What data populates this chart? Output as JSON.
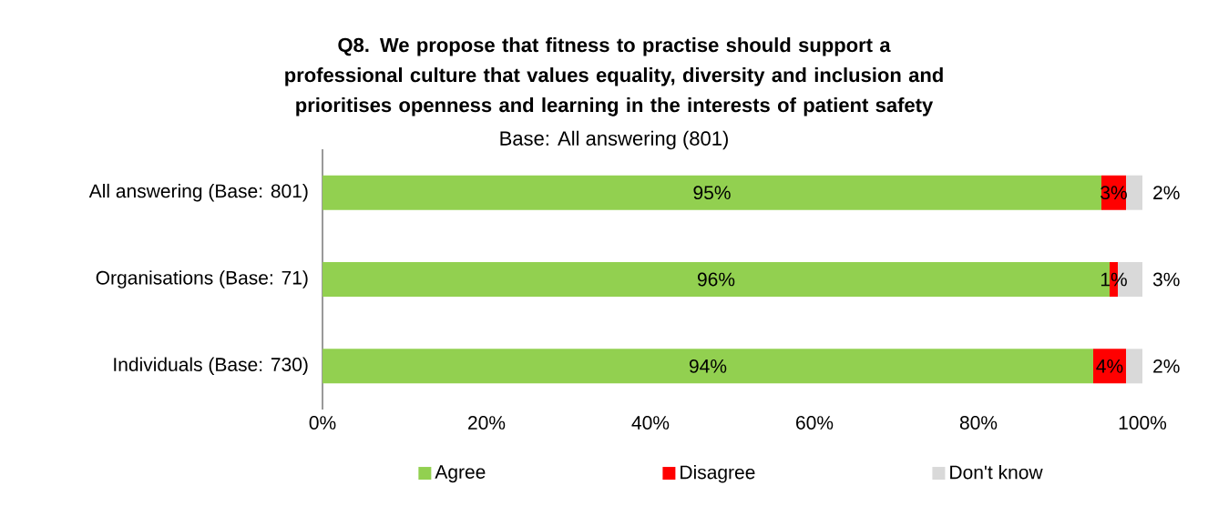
{
  "chart_data": {
    "type": "bar",
    "orientation": "horizontal",
    "stacked": true,
    "title": "Q8. We propose that fitness to practise should support a professional culture that values equality, diversity and inclusion and prioritises openness and learning in the interests of patient safety",
    "subtitle": "Base: All answering (801)",
    "categories": [
      "All answering (Base: 801)",
      "Organisations (Base: 71)",
      "Individuals (Base: 730)"
    ],
    "series": [
      {
        "name": "Agree",
        "color": "#92d050",
        "values": [
          95,
          96,
          94
        ],
        "value_labels": [
          "95%",
          "96%",
          "94%"
        ]
      },
      {
        "name": "Disagree",
        "color": "#ff0000",
        "values": [
          3,
          1,
          4
        ],
        "value_labels": [
          "3%",
          "1%",
          "4%"
        ]
      },
      {
        "name": "Don't know",
        "color": "#d9d9d9",
        "values": [
          2,
          3,
          2
        ],
        "value_labels": [
          "2%",
          "3%",
          "2%"
        ]
      }
    ],
    "xlim": [
      0,
      100
    ],
    "xticks": [
      {
        "value": 0,
        "label": "0%"
      },
      {
        "value": 20,
        "label": "20%"
      },
      {
        "value": 40,
        "label": "40%"
      },
      {
        "value": 60,
        "label": "60%"
      },
      {
        "value": 80,
        "label": "80%"
      },
      {
        "value": 100,
        "label": "100%"
      }
    ],
    "legend": "bottom",
    "grid": false
  }
}
